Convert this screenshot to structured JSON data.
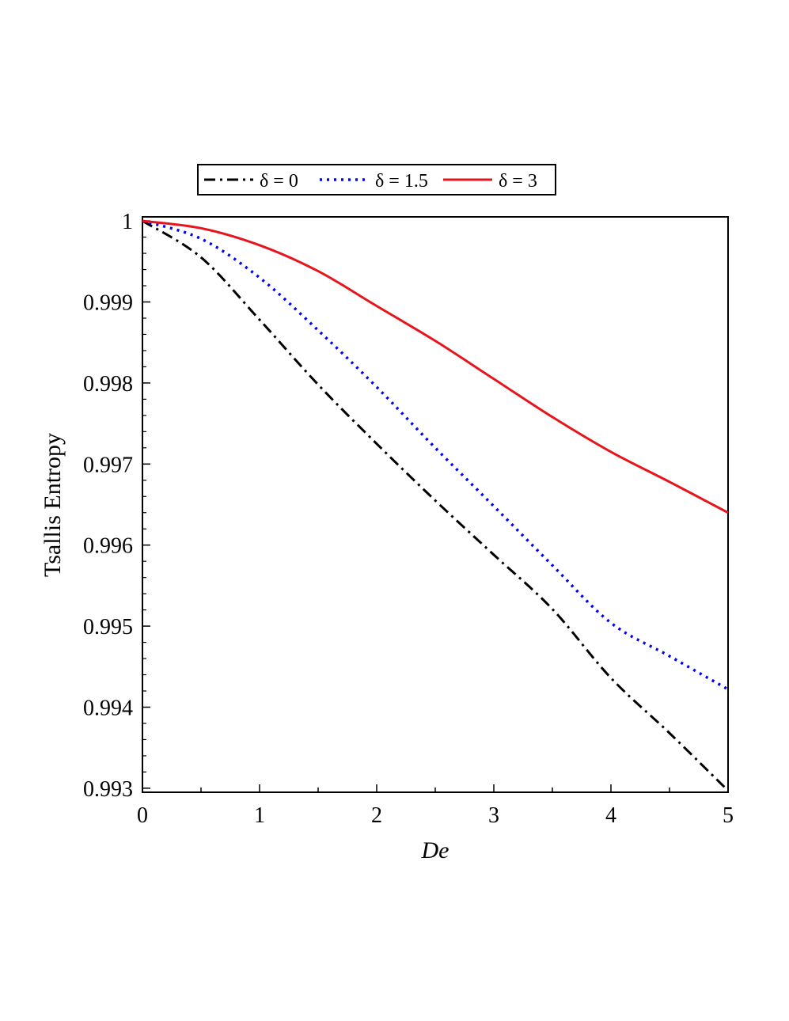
{
  "chart_data": {
    "type": "line",
    "xlabel": "De",
    "ylabel": "Tsallis Entropy",
    "xlim": [
      0,
      5
    ],
    "ylim": [
      0.99295,
      1.00005
    ],
    "xticks": [
      "0",
      "1",
      "2",
      "3",
      "4",
      "5"
    ],
    "yticks": [
      "0.993",
      "0.994",
      "0.995",
      "0.996",
      "0.997",
      "0.998",
      "0.999",
      "1"
    ],
    "legend_position": "top-center",
    "grid": false,
    "x": [
      0,
      0.5,
      1,
      1.5,
      2,
      2.5,
      3,
      3.5,
      4,
      4.5,
      5
    ],
    "series": [
      {
        "name": "δ = 0",
        "color": "#000000",
        "style": "dashdot",
        "values": [
          1.0,
          0.99955,
          0.99878,
          0.99798,
          0.99725,
          0.99655,
          0.99588,
          0.99521,
          0.99436,
          0.99368,
          0.99297
        ]
      },
      {
        "name": "δ = 1.5",
        "color": "#0000ff",
        "style": "dotted",
        "values": [
          1.0,
          0.99978,
          0.9993,
          0.99865,
          0.99795,
          0.9972,
          0.99648,
          0.99575,
          0.99504,
          0.99463,
          0.99422
        ]
      },
      {
        "name": "δ = 3",
        "color": "#e8141c",
        "style": "solid",
        "values": [
          1.0,
          0.99991,
          0.9997,
          0.99938,
          0.99895,
          0.99852,
          0.99805,
          0.99758,
          0.99715,
          0.99678,
          0.9964
        ]
      }
    ]
  }
}
